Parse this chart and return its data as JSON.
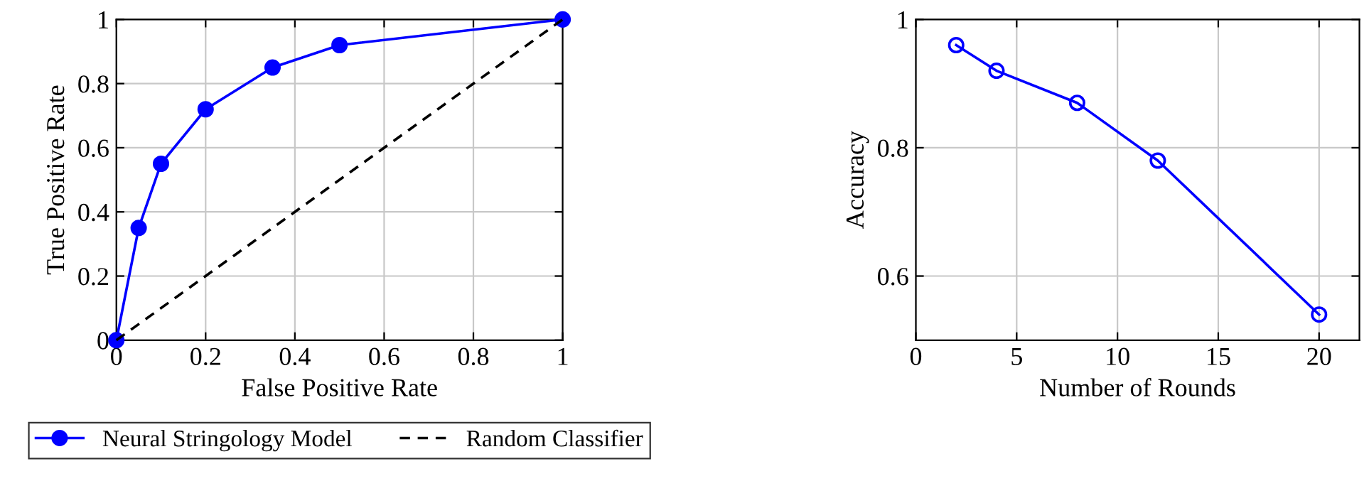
{
  "chart_data": [
    {
      "type": "line",
      "xlabel": "False Positive Rate",
      "ylabel": "True Positive Rate",
      "xlim": [
        0,
        1
      ],
      "ylim": [
        0,
        1
      ],
      "xticks": [
        0,
        0.2,
        0.4,
        0.6,
        0.8,
        1
      ],
      "yticks": [
        0,
        0.2,
        0.4,
        0.6,
        0.8,
        1
      ],
      "grid": true,
      "legend": "bottom",
      "series": [
        {
          "name": "Neural Stringology Model",
          "color": "#0000ff",
          "marker": "circle",
          "line_style": "solid",
          "x": [
            0,
            0.05,
            0.1,
            0.2,
            0.35,
            0.5,
            1
          ],
          "values": [
            0,
            0.35,
            0.55,
            0.72,
            0.85,
            0.92,
            1
          ]
        },
        {
          "name": "Random Classifier",
          "color": "#000000",
          "marker": "none",
          "line_style": "dashed",
          "x": [
            0,
            1
          ],
          "values": [
            0,
            1
          ]
        }
      ]
    },
    {
      "type": "line",
      "xlabel": "Number of Rounds",
      "ylabel": "Accuracy",
      "xlim": [
        0,
        22
      ],
      "ylim": [
        0.5,
        1
      ],
      "xticks": [
        0,
        5,
        10,
        15,
        20
      ],
      "yticks": [
        0.6,
        0.8,
        1
      ],
      "grid": true,
      "legend": false,
      "series": [
        {
          "color": "#0000ff",
          "marker": "circle",
          "line_style": "solid",
          "x": [
            2,
            4,
            8,
            12,
            20
          ],
          "values": [
            0.96,
            0.92,
            0.87,
            0.78,
            0.54
          ]
        }
      ]
    }
  ]
}
